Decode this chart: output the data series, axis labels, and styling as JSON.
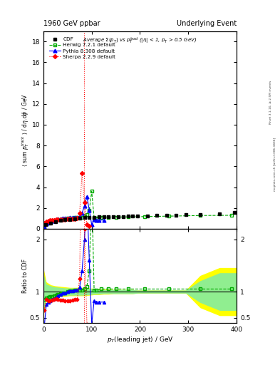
{
  "title_left": "1960 GeV ppbar",
  "title_right": "Underlying Event",
  "main_title": "Average $\\Sigma(p_T)$ vs $p_T^{lead}$ (|$\\eta$| < 1, $p_T$ > 0.5 GeV)",
  "xlabel": "$p_T$(leading jet) / GeV",
  "ylabel_main": "$\\langle$ sum $p_T^{track}$ $\\rangle$ / d$\\eta$.d$\\phi$ / GeV",
  "ylabel_ratio": "Ratio to CDF",
  "right_label_top": "Rivet 3.1.10, ≥ 2.5M events",
  "right_label_bottom": "mcplots.cern.ch [arXiv:1306.3436]",
  "xlim": [
    0,
    400
  ],
  "ylim_main": [
    0,
    19
  ],
  "ylim_ratio": [
    0.4,
    2.2
  ],
  "cdf_x": [
    5,
    15,
    25,
    35,
    45,
    55,
    65,
    75,
    85,
    95,
    105,
    115,
    125,
    135,
    145,
    155,
    165,
    175,
    185,
    195,
    215,
    235,
    255,
    275,
    295,
    325,
    365,
    395
  ],
  "cdf_y": [
    0.42,
    0.58,
    0.7,
    0.8,
    0.88,
    0.92,
    0.97,
    1.02,
    1.08,
    1.1,
    1.12,
    1.13,
    1.14,
    1.15,
    1.17,
    1.18,
    1.19,
    1.2,
    1.22,
    1.23,
    1.26,
    1.28,
    1.28,
    1.32,
    1.34,
    1.4,
    1.46,
    1.55
  ],
  "herwig_x": [
    2,
    6,
    10,
    14,
    18,
    22,
    26,
    30,
    35,
    40,
    45,
    50,
    55,
    60,
    65,
    70,
    75,
    80,
    85,
    90,
    95,
    100,
    105,
    110,
    120,
    135,
    150,
    175,
    210,
    260,
    325,
    390
  ],
  "herwig_y": [
    0.3,
    0.45,
    0.55,
    0.65,
    0.72,
    0.78,
    0.82,
    0.86,
    0.9,
    0.94,
    0.97,
    1.0,
    1.03,
    1.05,
    1.07,
    1.08,
    1.1,
    1.12,
    1.2,
    1.35,
    1.8,
    3.6,
    1.05,
    1.05,
    1.1,
    1.1,
    1.12,
    1.15,
    1.18,
    1.22,
    1.28,
    1.3
  ],
  "pythia_x": [
    2,
    6,
    10,
    14,
    18,
    22,
    26,
    30,
    35,
    40,
    45,
    50,
    55,
    60,
    65,
    70,
    75,
    80,
    85,
    90,
    95,
    100,
    105,
    110,
    115,
    125
  ],
  "pythia_y": [
    0.22,
    0.48,
    0.6,
    0.7,
    0.78,
    0.84,
    0.88,
    0.93,
    0.97,
    1.0,
    1.02,
    1.05,
    1.07,
    1.08,
    1.1,
    1.12,
    1.18,
    1.5,
    2.2,
    3.1,
    1.8,
    0.4,
    0.88,
    0.85,
    0.84,
    0.85
  ],
  "sherpa_x": [
    2,
    6,
    10,
    14,
    18,
    22,
    26,
    30,
    35,
    40,
    45,
    50,
    55,
    60,
    65,
    70,
    75,
    80,
    85,
    90,
    95
  ],
  "sherpa_y": [
    0.52,
    0.7,
    0.75,
    0.8,
    0.83,
    0.85,
    0.87,
    0.88,
    0.89,
    0.91,
    0.92,
    0.93,
    0.95,
    0.97,
    0.98,
    1.0,
    1.5,
    5.35,
    2.5,
    0.4,
    0.3
  ],
  "vertical_line_x": 84,
  "cdf_color": "black",
  "herwig_color": "#00aa00",
  "pythia_color": "blue",
  "sherpa_color": "red",
  "herwig_ratio_y": [
    0.85,
    0.88,
    0.89,
    0.9,
    0.91,
    0.92,
    0.93,
    0.94,
    0.96,
    0.97,
    0.98,
    1.0,
    1.02,
    1.02,
    1.03,
    1.03,
    1.03,
    1.03,
    1.05,
    1.1,
    1.4,
    3.0,
    1.03,
    1.03,
    1.05,
    1.05,
    1.05,
    1.05,
    1.05,
    1.05,
    1.05,
    1.05
  ],
  "pythia_ratio_y": [
    0.35,
    0.75,
    0.8,
    0.82,
    0.85,
    0.87,
    0.89,
    0.92,
    0.95,
    0.97,
    0.98,
    1.0,
    1.02,
    1.02,
    1.03,
    1.03,
    1.08,
    1.4,
    2.0,
    2.8,
    1.6,
    0.38,
    0.82,
    0.8,
    0.8,
    0.8
  ],
  "sherpa_ratio_y": [
    0.65,
    0.85,
    0.82,
    0.83,
    0.84,
    0.85,
    0.86,
    0.85,
    0.84,
    0.84,
    0.83,
    0.82,
    0.83,
    0.84,
    0.85,
    0.85,
    1.25,
    4.8,
    2.2,
    0.38,
    0.3
  ],
  "yellow_band_x": [
    0,
    5,
    15,
    25,
    35,
    45,
    55,
    65,
    75,
    85,
    95,
    105,
    115,
    125,
    135,
    145,
    155,
    165,
    175,
    185,
    195,
    215,
    235,
    255,
    275,
    295,
    325,
    365,
    400
  ],
  "yellow_band_lo": [
    0.6,
    0.82,
    0.88,
    0.9,
    0.91,
    0.92,
    0.93,
    0.93,
    0.93,
    0.93,
    0.94,
    0.95,
    0.95,
    0.96,
    0.96,
    0.97,
    0.97,
    0.97,
    0.97,
    0.97,
    0.98,
    0.98,
    0.98,
    0.98,
    0.98,
    0.98,
    0.7,
    0.55,
    0.55
  ],
  "yellow_band_hi": [
    1.4,
    1.18,
    1.12,
    1.1,
    1.09,
    1.08,
    1.07,
    1.07,
    1.07,
    1.07,
    1.06,
    1.05,
    1.05,
    1.04,
    1.04,
    1.03,
    1.03,
    1.03,
    1.03,
    1.03,
    1.02,
    1.02,
    1.02,
    1.02,
    1.02,
    1.02,
    1.3,
    1.45,
    1.45
  ],
  "green_band_x": [
    0,
    5,
    15,
    25,
    35,
    45,
    55,
    65,
    75,
    85,
    95,
    105,
    115,
    125,
    135,
    145,
    155,
    165,
    175,
    185,
    195,
    215,
    235,
    255,
    275,
    295,
    325,
    365,
    400
  ],
  "green_band_lo": [
    0.7,
    0.86,
    0.9,
    0.92,
    0.93,
    0.94,
    0.94,
    0.94,
    0.94,
    0.94,
    0.95,
    0.96,
    0.96,
    0.97,
    0.97,
    0.97,
    0.97,
    0.97,
    0.97,
    0.97,
    0.98,
    0.98,
    0.98,
    0.98,
    0.98,
    0.98,
    0.8,
    0.65,
    0.65
  ],
  "green_band_hi": [
    1.3,
    1.14,
    1.1,
    1.08,
    1.07,
    1.06,
    1.06,
    1.06,
    1.06,
    1.06,
    1.05,
    1.04,
    1.04,
    1.03,
    1.03,
    1.03,
    1.03,
    1.03,
    1.03,
    1.03,
    1.02,
    1.02,
    1.02,
    1.02,
    1.02,
    1.02,
    1.2,
    1.35,
    1.35
  ],
  "main_yticks": [
    0,
    2,
    4,
    6,
    8,
    10,
    12,
    14,
    16,
    18
  ],
  "ratio_yticks": [
    0.5,
    1.0,
    2.0
  ],
  "xticks": [
    0,
    100,
    200,
    300,
    400
  ]
}
